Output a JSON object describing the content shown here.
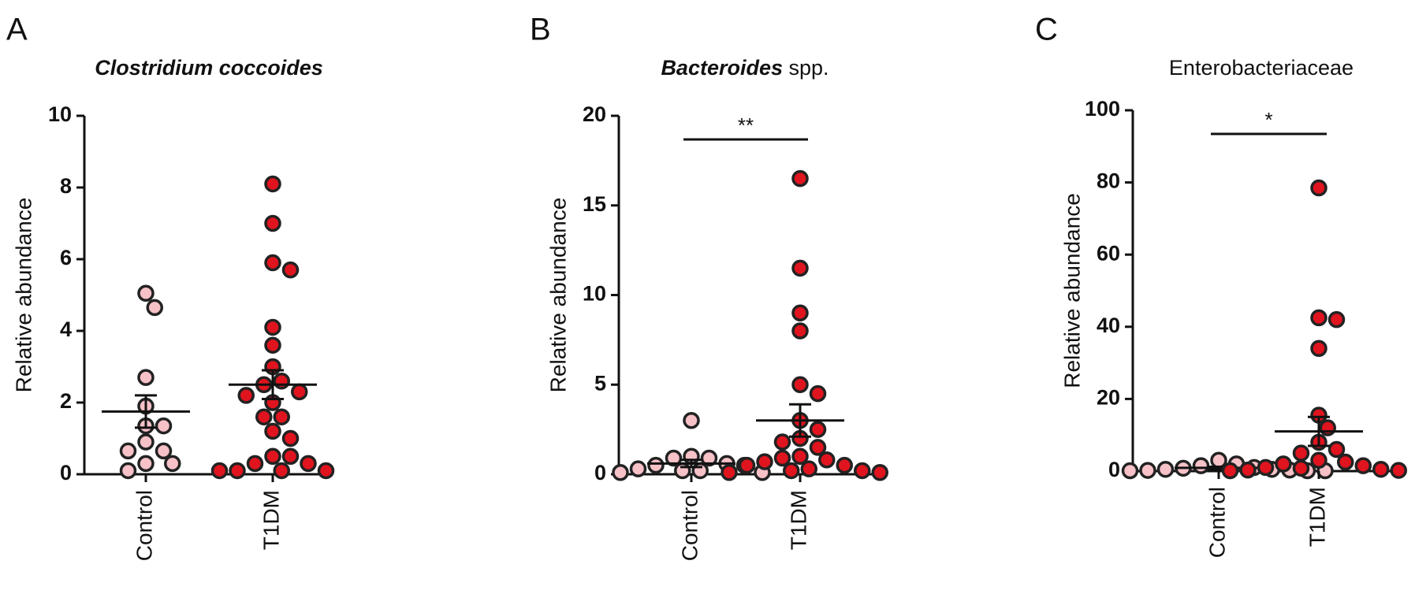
{
  "chart_data": [
    {
      "type": "strip",
      "panel": "A",
      "title_parts": [
        {
          "text": "Clostridium coccoides",
          "italic": true
        }
      ],
      "y_label": "Relative abundance",
      "categories": [
        "Control",
        "T1DM"
      ],
      "groups": [
        {
          "color": "#f7c1c8",
          "values": [
            5.05,
            4.65,
            2.7,
            1.9,
            1.35,
            1.35,
            0.9,
            0.65,
            0.65,
            0.3,
            0.3,
            0.1
          ],
          "mean": 1.75,
          "sem": 0.45
        },
        {
          "color": "#e0141e",
          "values": [
            8.1,
            7.0,
            5.9,
            5.7,
            4.1,
            3.6,
            3.0,
            2.6,
            2.5,
            2.3,
            2.2,
            2.0,
            1.6,
            1.6,
            1.2,
            1.0,
            0.5,
            0.5,
            0.3,
            0.3,
            0.1,
            0.1,
            0.1,
            0.1
          ],
          "mean": 2.5,
          "sem": 0.4
        }
      ],
      "ylim": [
        0,
        10
      ],
      "yticks": [
        0,
        2,
        4,
        6,
        8,
        10
      ]
    },
    {
      "type": "strip",
      "panel": "B",
      "title_parts": [
        {
          "text": "Bacteroides",
          "italic": true
        },
        {
          "text": " spp.",
          "italic": false
        }
      ],
      "y_label": "Relative abundance",
      "categories": [
        "Control",
        "T1DM"
      ],
      "groups": [
        {
          "color": "#f7c1c8",
          "values": [
            3.0,
            1.0,
            0.9,
            0.9,
            0.6,
            0.5,
            0.5,
            0.3,
            0.2,
            0.2,
            0.1,
            0.1
          ],
          "mean": 0.6,
          "sem": 0.2
        },
        {
          "color": "#e0141e",
          "values": [
            16.5,
            11.5,
            9.0,
            8.0,
            5.0,
            4.5,
            3.0,
            2.5,
            2.0,
            1.8,
            1.5,
            1.0,
            0.9,
            0.8,
            0.7,
            0.5,
            0.5,
            0.3,
            0.2,
            0.2,
            0.1,
            0.1
          ],
          "mean": 3.0,
          "sem": 0.9
        }
      ],
      "significance": "**",
      "ylim": [
        0,
        20
      ],
      "yticks": [
        0,
        5,
        10,
        15,
        20
      ]
    },
    {
      "type": "strip",
      "panel": "C",
      "title_parts": [
        {
          "text": "Enterobacteriaceae",
          "italic": false
        }
      ],
      "y_label": "Relative abundance",
      "categories": [
        "Control",
        "T1DM"
      ],
      "groups": [
        {
          "color": "#f7c1c8",
          "values": [
            3.0,
            2.0,
            1.5,
            1.0,
            0.8,
            0.5,
            0.5,
            0.3,
            0.2,
            0.1,
            0.1,
            0.1
          ],
          "mean": 0.9,
          "sem": 0.3
        },
        {
          "color": "#e0141e",
          "values": [
            78.5,
            42.5,
            42.0,
            34.0,
            15.5,
            12.0,
            8.0,
            6.0,
            5.0,
            3.0,
            2.5,
            2.0,
            1.5,
            1.0,
            0.8,
            0.5,
            0.3,
            0.2,
            0.1
          ],
          "mean": 11.0,
          "sem": 4.0
        }
      ],
      "significance": "*",
      "ylim": [
        0,
        100
      ],
      "yticks": [
        0,
        20,
        40,
        60,
        80,
        100
      ]
    }
  ]
}
